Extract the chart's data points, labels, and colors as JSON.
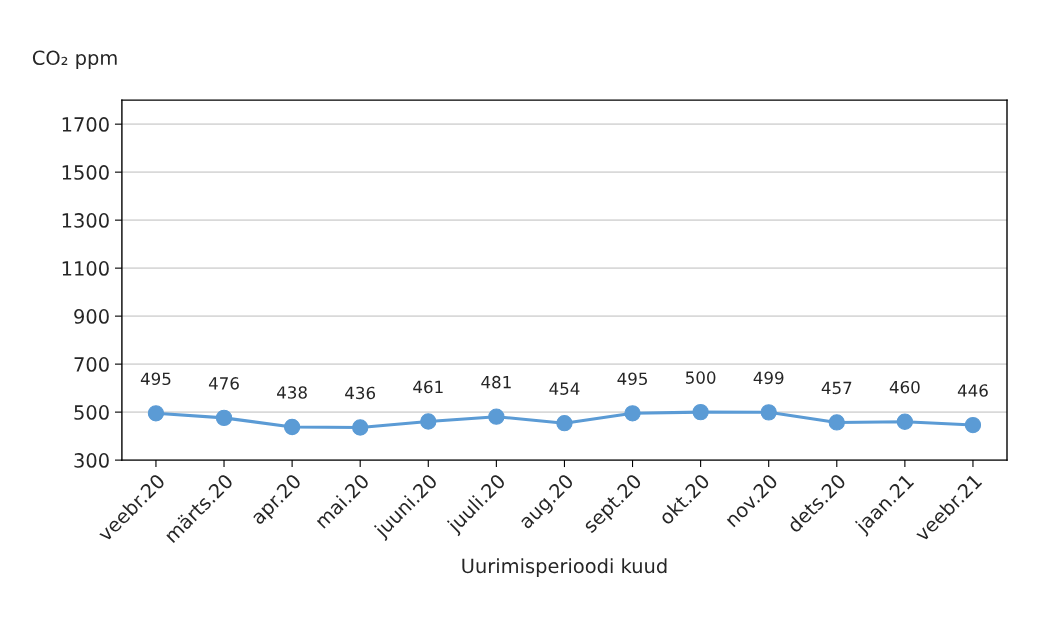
{
  "chart_data": {
    "type": "line",
    "ylabel": "CO₂ ppm",
    "xlabel": "Uurimisperioodi kuud",
    "categories": [
      "veebr.20",
      "märts.20",
      "apr.20",
      "mai.20",
      "juuni.20",
      "juuli.20",
      "aug.20",
      "sept.20",
      "okt.20",
      "nov.20",
      "dets.20",
      "jaan.21",
      "veebr.21"
    ],
    "series": [
      {
        "color": "#5b9bd5",
        "values": [
          495,
          476,
          438,
          436,
          461,
          481,
          454,
          495,
          500,
          499,
          457,
          460,
          446
        ]
      }
    ],
    "ylim": [
      300,
      1800
    ],
    "yticks": [
      300,
      500,
      700,
      900,
      1100,
      1300,
      1500,
      1700
    ],
    "grid": "y",
    "marker": "circle",
    "line_style": "solid",
    "data_labels": true,
    "legend": false
  }
}
